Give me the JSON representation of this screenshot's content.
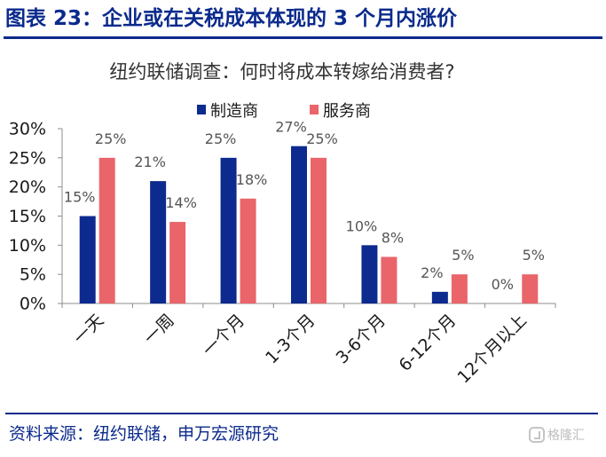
{
  "figure": {
    "title": "图表 23：企业或在关税成本体现的 3 个月内涨价",
    "source": "资料来源：纽约联储，申万宏源研究",
    "watermark": "格隆汇"
  },
  "chart_data": {
    "type": "bar",
    "title": "纽约联储调查：何时将成本转嫁给消费者?",
    "categories": [
      "一天",
      "一周",
      "一个月",
      "1-3个月",
      "3-6个月",
      "6-12个月",
      "12个月以上"
    ],
    "series": [
      {
        "name": "制造商",
        "values": [
          15,
          21,
          25,
          27,
          10,
          2,
          0
        ],
        "color": "#0d2a8f"
      },
      {
        "name": "服务商",
        "values": [
          25,
          14,
          18,
          25,
          8,
          5,
          5
        ],
        "color": "#e9656a"
      }
    ],
    "data_labels": [
      [
        "15%",
        "21%",
        "25%",
        "27%",
        "10%",
        "2%",
        "0%"
      ],
      [
        "25%",
        "14%",
        "18%",
        "25%",
        "8%",
        "5%",
        "5%"
      ]
    ],
    "yticks": [
      "0%",
      "5%",
      "10%",
      "15%",
      "20%",
      "25%",
      "30%"
    ],
    "ylim": [
      0,
      30
    ],
    "legend_position": "top",
    "grid": false
  }
}
